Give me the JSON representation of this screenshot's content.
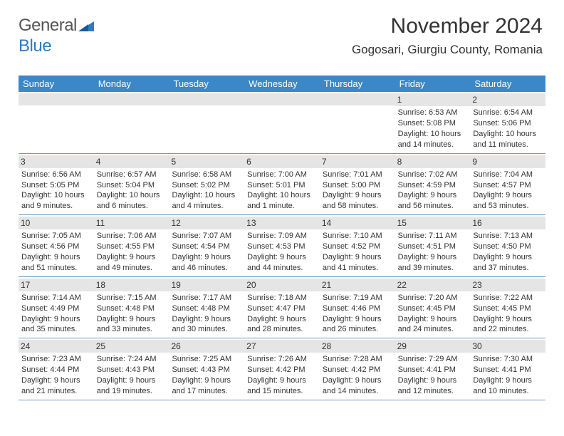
{
  "logo": {
    "text1": "General",
    "text2": "Blue"
  },
  "header": {
    "month_year": "November 2024",
    "location": "Gogosari, Giurgiu County, Romania"
  },
  "colors": {
    "header_bg": "#3b87c8",
    "header_text": "#ffffff",
    "number_strip": "#e5e5e5",
    "row_border": "#6a9bc4",
    "text": "#333333",
    "logo_gray": "#555555",
    "logo_blue": "#2f7bbf"
  },
  "day_names": [
    "Sunday",
    "Monday",
    "Tuesday",
    "Wednesday",
    "Thursday",
    "Friday",
    "Saturday"
  ],
  "weeks": [
    [
      {
        "n": "",
        "sr": "",
        "ss": "",
        "d1": "",
        "d2": ""
      },
      {
        "n": "",
        "sr": "",
        "ss": "",
        "d1": "",
        "d2": ""
      },
      {
        "n": "",
        "sr": "",
        "ss": "",
        "d1": "",
        "d2": ""
      },
      {
        "n": "",
        "sr": "",
        "ss": "",
        "d1": "",
        "d2": ""
      },
      {
        "n": "",
        "sr": "",
        "ss": "",
        "d1": "",
        "d2": ""
      },
      {
        "n": "1",
        "sr": "Sunrise: 6:53 AM",
        "ss": "Sunset: 5:08 PM",
        "d1": "Daylight: 10 hours",
        "d2": "and 14 minutes."
      },
      {
        "n": "2",
        "sr": "Sunrise: 6:54 AM",
        "ss": "Sunset: 5:06 PM",
        "d1": "Daylight: 10 hours",
        "d2": "and 11 minutes."
      }
    ],
    [
      {
        "n": "3",
        "sr": "Sunrise: 6:56 AM",
        "ss": "Sunset: 5:05 PM",
        "d1": "Daylight: 10 hours",
        "d2": "and 9 minutes."
      },
      {
        "n": "4",
        "sr": "Sunrise: 6:57 AM",
        "ss": "Sunset: 5:04 PM",
        "d1": "Daylight: 10 hours",
        "d2": "and 6 minutes."
      },
      {
        "n": "5",
        "sr": "Sunrise: 6:58 AM",
        "ss": "Sunset: 5:02 PM",
        "d1": "Daylight: 10 hours",
        "d2": "and 4 minutes."
      },
      {
        "n": "6",
        "sr": "Sunrise: 7:00 AM",
        "ss": "Sunset: 5:01 PM",
        "d1": "Daylight: 10 hours",
        "d2": "and 1 minute."
      },
      {
        "n": "7",
        "sr": "Sunrise: 7:01 AM",
        "ss": "Sunset: 5:00 PM",
        "d1": "Daylight: 9 hours",
        "d2": "and 58 minutes."
      },
      {
        "n": "8",
        "sr": "Sunrise: 7:02 AM",
        "ss": "Sunset: 4:59 PM",
        "d1": "Daylight: 9 hours",
        "d2": "and 56 minutes."
      },
      {
        "n": "9",
        "sr": "Sunrise: 7:04 AM",
        "ss": "Sunset: 4:57 PM",
        "d1": "Daylight: 9 hours",
        "d2": "and 53 minutes."
      }
    ],
    [
      {
        "n": "10",
        "sr": "Sunrise: 7:05 AM",
        "ss": "Sunset: 4:56 PM",
        "d1": "Daylight: 9 hours",
        "d2": "and 51 minutes."
      },
      {
        "n": "11",
        "sr": "Sunrise: 7:06 AM",
        "ss": "Sunset: 4:55 PM",
        "d1": "Daylight: 9 hours",
        "d2": "and 49 minutes."
      },
      {
        "n": "12",
        "sr": "Sunrise: 7:07 AM",
        "ss": "Sunset: 4:54 PM",
        "d1": "Daylight: 9 hours",
        "d2": "and 46 minutes."
      },
      {
        "n": "13",
        "sr": "Sunrise: 7:09 AM",
        "ss": "Sunset: 4:53 PM",
        "d1": "Daylight: 9 hours",
        "d2": "and 44 minutes."
      },
      {
        "n": "14",
        "sr": "Sunrise: 7:10 AM",
        "ss": "Sunset: 4:52 PM",
        "d1": "Daylight: 9 hours",
        "d2": "and 41 minutes."
      },
      {
        "n": "15",
        "sr": "Sunrise: 7:11 AM",
        "ss": "Sunset: 4:51 PM",
        "d1": "Daylight: 9 hours",
        "d2": "and 39 minutes."
      },
      {
        "n": "16",
        "sr": "Sunrise: 7:13 AM",
        "ss": "Sunset: 4:50 PM",
        "d1": "Daylight: 9 hours",
        "d2": "and 37 minutes."
      }
    ],
    [
      {
        "n": "17",
        "sr": "Sunrise: 7:14 AM",
        "ss": "Sunset: 4:49 PM",
        "d1": "Daylight: 9 hours",
        "d2": "and 35 minutes."
      },
      {
        "n": "18",
        "sr": "Sunrise: 7:15 AM",
        "ss": "Sunset: 4:48 PM",
        "d1": "Daylight: 9 hours",
        "d2": "and 33 minutes."
      },
      {
        "n": "19",
        "sr": "Sunrise: 7:17 AM",
        "ss": "Sunset: 4:48 PM",
        "d1": "Daylight: 9 hours",
        "d2": "and 30 minutes."
      },
      {
        "n": "20",
        "sr": "Sunrise: 7:18 AM",
        "ss": "Sunset: 4:47 PM",
        "d1": "Daylight: 9 hours",
        "d2": "and 28 minutes."
      },
      {
        "n": "21",
        "sr": "Sunrise: 7:19 AM",
        "ss": "Sunset: 4:46 PM",
        "d1": "Daylight: 9 hours",
        "d2": "and 26 minutes."
      },
      {
        "n": "22",
        "sr": "Sunrise: 7:20 AM",
        "ss": "Sunset: 4:45 PM",
        "d1": "Daylight: 9 hours",
        "d2": "and 24 minutes."
      },
      {
        "n": "23",
        "sr": "Sunrise: 7:22 AM",
        "ss": "Sunset: 4:45 PM",
        "d1": "Daylight: 9 hours",
        "d2": "and 22 minutes."
      }
    ],
    [
      {
        "n": "24",
        "sr": "Sunrise: 7:23 AM",
        "ss": "Sunset: 4:44 PM",
        "d1": "Daylight: 9 hours",
        "d2": "and 21 minutes."
      },
      {
        "n": "25",
        "sr": "Sunrise: 7:24 AM",
        "ss": "Sunset: 4:43 PM",
        "d1": "Daylight: 9 hours",
        "d2": "and 19 minutes."
      },
      {
        "n": "26",
        "sr": "Sunrise: 7:25 AM",
        "ss": "Sunset: 4:43 PM",
        "d1": "Daylight: 9 hours",
        "d2": "and 17 minutes."
      },
      {
        "n": "27",
        "sr": "Sunrise: 7:26 AM",
        "ss": "Sunset: 4:42 PM",
        "d1": "Daylight: 9 hours",
        "d2": "and 15 minutes."
      },
      {
        "n": "28",
        "sr": "Sunrise: 7:28 AM",
        "ss": "Sunset: 4:42 PM",
        "d1": "Daylight: 9 hours",
        "d2": "and 14 minutes."
      },
      {
        "n": "29",
        "sr": "Sunrise: 7:29 AM",
        "ss": "Sunset: 4:41 PM",
        "d1": "Daylight: 9 hours",
        "d2": "and 12 minutes."
      },
      {
        "n": "30",
        "sr": "Sunrise: 7:30 AM",
        "ss": "Sunset: 4:41 PM",
        "d1": "Daylight: 9 hours",
        "d2": "and 10 minutes."
      }
    ]
  ]
}
